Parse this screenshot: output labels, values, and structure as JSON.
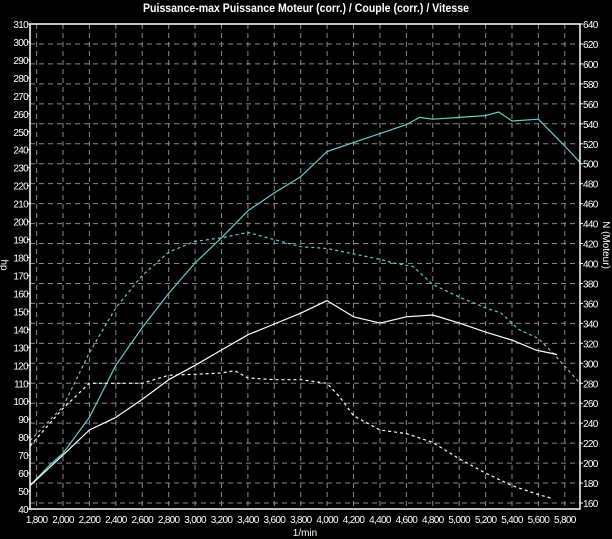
{
  "chart_data": {
    "type": "line",
    "title": "Puissance-max Puissance Moteur (corr.) / Couple (corr.) / Vitesse",
    "xlabel": "1/min",
    "ylabel_left": "hp",
    "ylabel_right": "N (Moteur)",
    "xlim": [
      1750,
      5915
    ],
    "ylim_left": [
      40,
      310
    ],
    "ylim_right": [
      154,
      640
    ],
    "x_ticks": [
      "1,800",
      "2,000",
      "2,200",
      "2,400",
      "2,600",
      "2,800",
      "3,000",
      "3,200",
      "3,400",
      "3,600",
      "3,800",
      "4,000",
      "4,200",
      "4,400",
      "4,600",
      "4,800",
      "5,000",
      "5,200",
      "5,400",
      "5,600",
      "5,800"
    ],
    "x_tick_values": [
      1800,
      2000,
      2200,
      2400,
      2600,
      2800,
      3000,
      3200,
      3400,
      3600,
      3800,
      4000,
      4200,
      4400,
      4600,
      4800,
      5000,
      5200,
      5400,
      5600,
      5800
    ],
    "y_left_ticks": [
      "310",
      "300",
      "290",
      "280",
      "270",
      "260",
      "250",
      "240",
      "230",
      "220",
      "210",
      "200",
      "190",
      "180",
      "170",
      "160",
      "150",
      "140",
      "130",
      "120",
      "110",
      "100",
      "90",
      "80",
      "70",
      "60",
      "50",
      "40"
    ],
    "y_right_ticks": [
      "640",
      "620",
      "600",
      "580",
      "560",
      "540",
      "520",
      "500",
      "480",
      "460",
      "440",
      "420",
      "400",
      "380",
      "360",
      "340",
      "320",
      "300",
      "280",
      "260",
      "240",
      "220",
      "200",
      "180",
      "160"
    ],
    "grid": true,
    "background": "#000000",
    "grid_color": "#8a8a8a",
    "series": [
      {
        "color": "#66cccc",
        "style": "solid",
        "axis": "left",
        "x": [
          1750,
          1900,
          2000,
          2200,
          2400,
          2600,
          2800,
          3000,
          3200,
          3400,
          3600,
          3800,
          4000,
          4200,
          4400,
          4600,
          4700,
          4800,
          5000,
          5200,
          5300,
          5400,
          5600,
          5800,
          5915
        ],
        "y": [
          53,
          64.5,
          71,
          91,
          120,
          141,
          160,
          177,
          191,
          206,
          216,
          225,
          239,
          244,
          249,
          254,
          258,
          257,
          258,
          259,
          261,
          256,
          257,
          242,
          233
        ]
      },
      {
        "color": "#66cccc",
        "style": "dashed",
        "axis": "left",
        "x": [
          1750,
          2000,
          2200,
          2400,
          2600,
          2800,
          3000,
          3200,
          3400,
          3600,
          3800,
          4000,
          4200,
          4400,
          4500,
          4650,
          4800,
          5000,
          5200,
          5320,
          5450,
          5600,
          5720,
          5915
        ],
        "y": [
          78,
          97,
          127,
          152,
          170,
          183,
          189,
          191,
          194,
          190,
          186,
          185,
          182,
          179,
          177,
          175,
          165,
          158,
          152,
          149,
          140,
          135,
          126,
          110
        ]
      },
      {
        "color": "#ffffff",
        "style": "solid",
        "axis": "left",
        "x": [
          1750,
          2000,
          2200,
          2400,
          2600,
          2800,
          3000,
          3200,
          3400,
          3600,
          3800,
          4000,
          4200,
          4400,
          4600,
          4800,
          5000,
          5200,
          5400,
          5580,
          5740
        ],
        "y": [
          53,
          70,
          84,
          91,
          101,
          112,
          120,
          128.5,
          137,
          143,
          149,
          156,
          147,
          143.5,
          147,
          148,
          143.5,
          138.5,
          134,
          128.5,
          126
        ]
      },
      {
        "color": "#ffffff",
        "style": "dashed",
        "axis": "left",
        "x": [
          1750,
          2000,
          2200,
          2400,
          2600,
          2800,
          3000,
          3200,
          3300,
          3400,
          3600,
          3800,
          4000,
          4100,
          4200,
          4400,
          4600,
          4800,
          5000,
          5200,
          5400,
          5600,
          5700
        ],
        "y": [
          75,
          96,
          110,
          110,
          110,
          114.5,
          115,
          115.7,
          117,
          113,
          112,
          112,
          110,
          102,
          92,
          84,
          82,
          77,
          68,
          60,
          53,
          48,
          46
        ]
      }
    ]
  }
}
